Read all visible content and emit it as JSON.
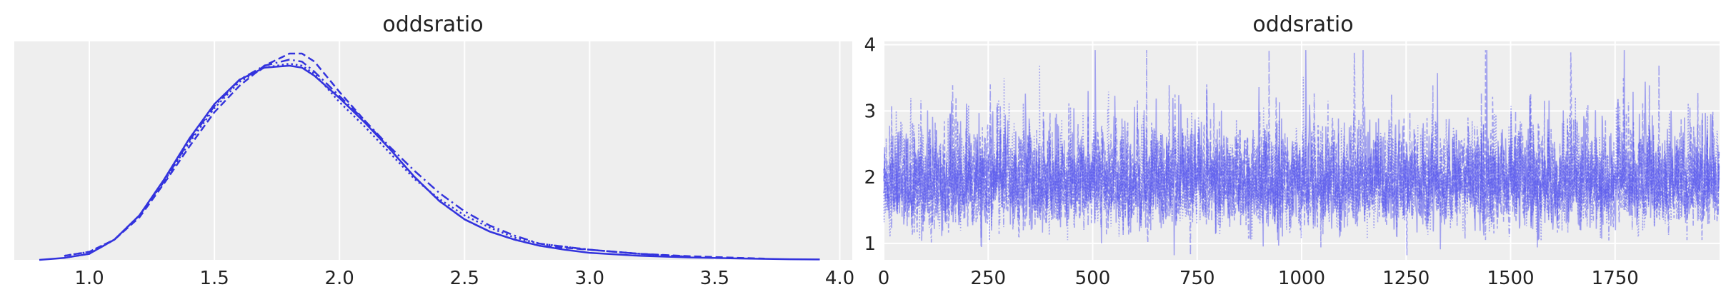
{
  "chart_data": [
    {
      "type": "line",
      "subtype": "kde",
      "title": "oddsratio",
      "xlabel": "",
      "ylabel": "",
      "xlim": [
        0.7,
        4.05
      ],
      "ylim": [
        0,
        1.08
      ],
      "xticks": [
        1.0,
        1.5,
        2.0,
        2.5,
        3.0,
        3.5,
        4.0
      ],
      "xtick_labels": [
        "1.0",
        "1.5",
        "2.0",
        "2.5",
        "3.0",
        "3.5",
        "4.0"
      ],
      "show_yticks": false,
      "grid": true,
      "background": "#eeeeee",
      "line_color": "#3333dd",
      "series": [
        {
          "linestyle": "solid",
          "x": [
            0.8,
            0.9,
            1.0,
            1.1,
            1.2,
            1.3,
            1.4,
            1.5,
            1.6,
            1.7,
            1.8,
            1.85,
            1.9,
            2.0,
            2.1,
            2.2,
            2.3,
            2.4,
            2.5,
            2.6,
            2.7,
            2.8,
            2.9,
            3.0,
            3.2,
            3.4,
            3.6,
            3.8,
            3.92
          ],
          "y": [
            0.0,
            0.01,
            0.03,
            0.1,
            0.22,
            0.4,
            0.6,
            0.77,
            0.89,
            0.95,
            0.96,
            0.95,
            0.91,
            0.8,
            0.68,
            0.55,
            0.41,
            0.29,
            0.2,
            0.14,
            0.1,
            0.07,
            0.05,
            0.035,
            0.02,
            0.012,
            0.007,
            0.003,
            0.002
          ]
        },
        {
          "linestyle": "dashed",
          "x": [
            0.9,
            1.0,
            1.1,
            1.2,
            1.3,
            1.4,
            1.5,
            1.6,
            1.7,
            1.8,
            1.85,
            1.9,
            2.0,
            2.1,
            2.2,
            2.3,
            2.4,
            2.5,
            2.6,
            2.7,
            2.8,
            3.0,
            3.2,
            3.4,
            3.6,
            3.7
          ],
          "y": [
            0.02,
            0.04,
            0.1,
            0.21,
            0.38,
            0.56,
            0.73,
            0.86,
            0.96,
            1.02,
            1.02,
            0.98,
            0.83,
            0.69,
            0.55,
            0.41,
            0.29,
            0.2,
            0.14,
            0.1,
            0.07,
            0.05,
            0.03,
            0.018,
            0.01,
            0.006
          ]
        },
        {
          "linestyle": "dotted",
          "x": [
            0.9,
            1.0,
            1.1,
            1.2,
            1.3,
            1.4,
            1.5,
            1.6,
            1.7,
            1.8,
            1.85,
            1.9,
            2.0,
            2.1,
            2.2,
            2.3,
            2.4,
            2.5,
            2.6,
            2.7,
            2.8,
            3.0,
            3.2,
            3.4
          ],
          "y": [
            0.02,
            0.04,
            0.1,
            0.22,
            0.39,
            0.58,
            0.75,
            0.88,
            0.95,
            0.97,
            0.96,
            0.92,
            0.78,
            0.66,
            0.53,
            0.4,
            0.3,
            0.22,
            0.16,
            0.11,
            0.08,
            0.05,
            0.03,
            0.015
          ]
        },
        {
          "linestyle": "dashdot",
          "x": [
            0.9,
            1.0,
            1.1,
            1.2,
            1.3,
            1.4,
            1.5,
            1.6,
            1.7,
            1.8,
            1.85,
            1.9,
            2.0,
            2.1,
            2.2,
            2.3,
            2.4,
            2.5,
            2.6,
            2.7,
            2.8,
            3.0,
            3.2,
            3.4
          ],
          "y": [
            0.01,
            0.03,
            0.1,
            0.22,
            0.39,
            0.59,
            0.76,
            0.89,
            0.96,
            0.99,
            0.98,
            0.93,
            0.81,
            0.69,
            0.56,
            0.44,
            0.33,
            0.24,
            0.17,
            0.12,
            0.08,
            0.05,
            0.03,
            0.015
          ]
        }
      ]
    },
    {
      "type": "line",
      "subtype": "trace",
      "title": "oddsratio",
      "xlabel": "",
      "ylabel": "",
      "xlim": [
        0,
        2000
      ],
      "ylim": [
        0.75,
        4.05
      ],
      "xticks": [
        0,
        250,
        500,
        750,
        1000,
        1250,
        1500,
        1750
      ],
      "xtick_labels": [
        "0",
        "250",
        "500",
        "750",
        "1000",
        "1250",
        "1500",
        "1750"
      ],
      "yticks": [
        1,
        2,
        3,
        4
      ],
      "ytick_labels": [
        "1",
        "2",
        "3",
        "4"
      ],
      "grid": true,
      "background": "#eeeeee",
      "line_color": "#5555ee",
      "n_draws": 2000,
      "n_chains": 4,
      "center": 1.85,
      "spread": 0.35,
      "min_value": 0.82,
      "max_value": 3.92,
      "series": [
        {
          "linestyle": "solid"
        },
        {
          "linestyle": "dashed"
        },
        {
          "linestyle": "dotted"
        },
        {
          "linestyle": "dashdot"
        }
      ]
    }
  ]
}
